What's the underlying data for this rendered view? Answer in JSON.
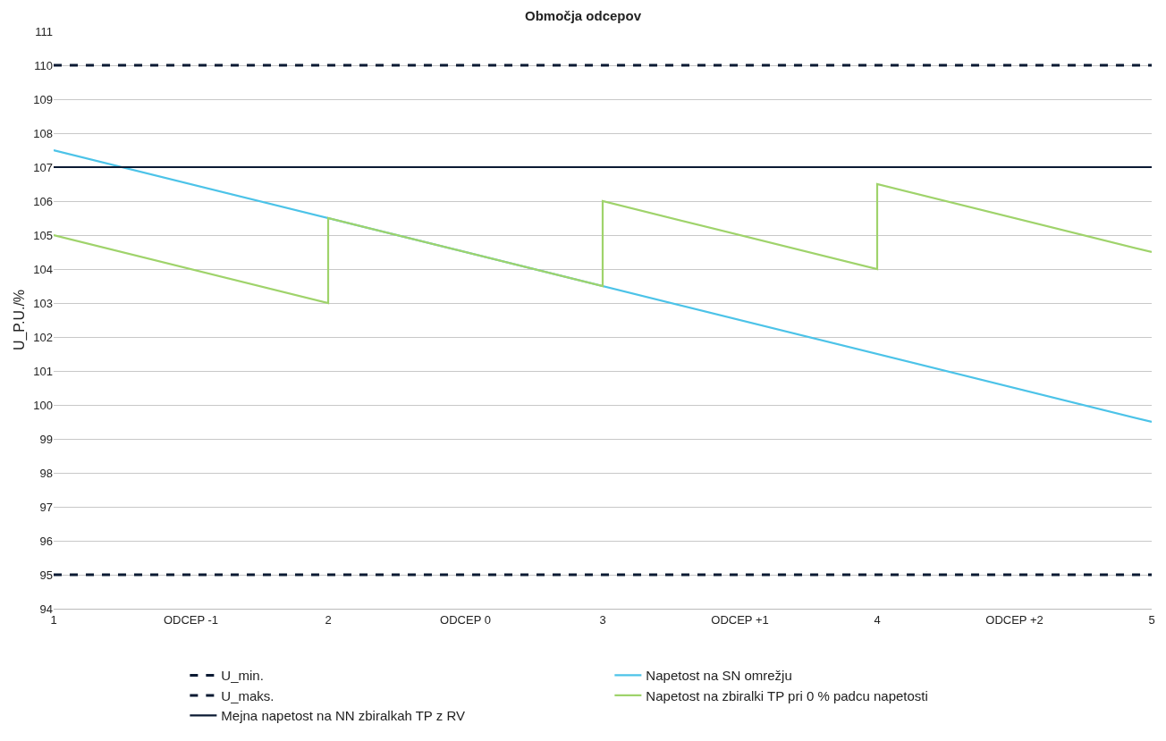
{
  "chart_data": {
    "type": "line",
    "title": "Območja odcepov",
    "ylabel": "U_P.U./%",
    "categories": [
      "1",
      "ODCEP -1",
      "2",
      "ODCEP 0",
      "3",
      "ODCEP +1",
      "4",
      "ODCEP +2",
      "5"
    ],
    "series": [
      {
        "name": "U_min.",
        "color": "#0b1a33",
        "x": [
          "1",
          "5"
        ],
        "values": [
          95,
          95
        ],
        "line_style": "dashed"
      },
      {
        "name": "Napetost na SN omrežju",
        "color": "#4cc3e8",
        "x": [
          "1",
          "5"
        ],
        "values": [
          107.5,
          99.5
        ]
      },
      {
        "name": "U_maks.",
        "color": "#0b1a33",
        "x": [
          "1",
          "5"
        ],
        "values": [
          110,
          110
        ],
        "line_style": "dashed"
      },
      {
        "name": "Napetost na zbiralki TP pri 0 % padcu napetosti",
        "color": "#9fd36b",
        "x": [
          "1",
          "2",
          "2",
          "3",
          "3",
          "4",
          "4",
          "5"
        ],
        "values": [
          105,
          103,
          105.5,
          103.5,
          106,
          104,
          106.5,
          104.5
        ]
      },
      {
        "name": "Mejna napetost na NN zbiralkah TP z RV",
        "color": "#0b1a33",
        "x": [
          "1",
          "5"
        ],
        "values": [
          107,
          107
        ],
        "line_style": "solid"
      }
    ],
    "ylim": [
      94,
      111
    ],
    "yticks": [
      94,
      95,
      96,
      97,
      98,
      99,
      100,
      101,
      102,
      103,
      104,
      105,
      106,
      107,
      108,
      109,
      110,
      111
    ],
    "grid": "y",
    "legend": "bottom",
    "marker": "none",
    "line_style": "solid"
  }
}
